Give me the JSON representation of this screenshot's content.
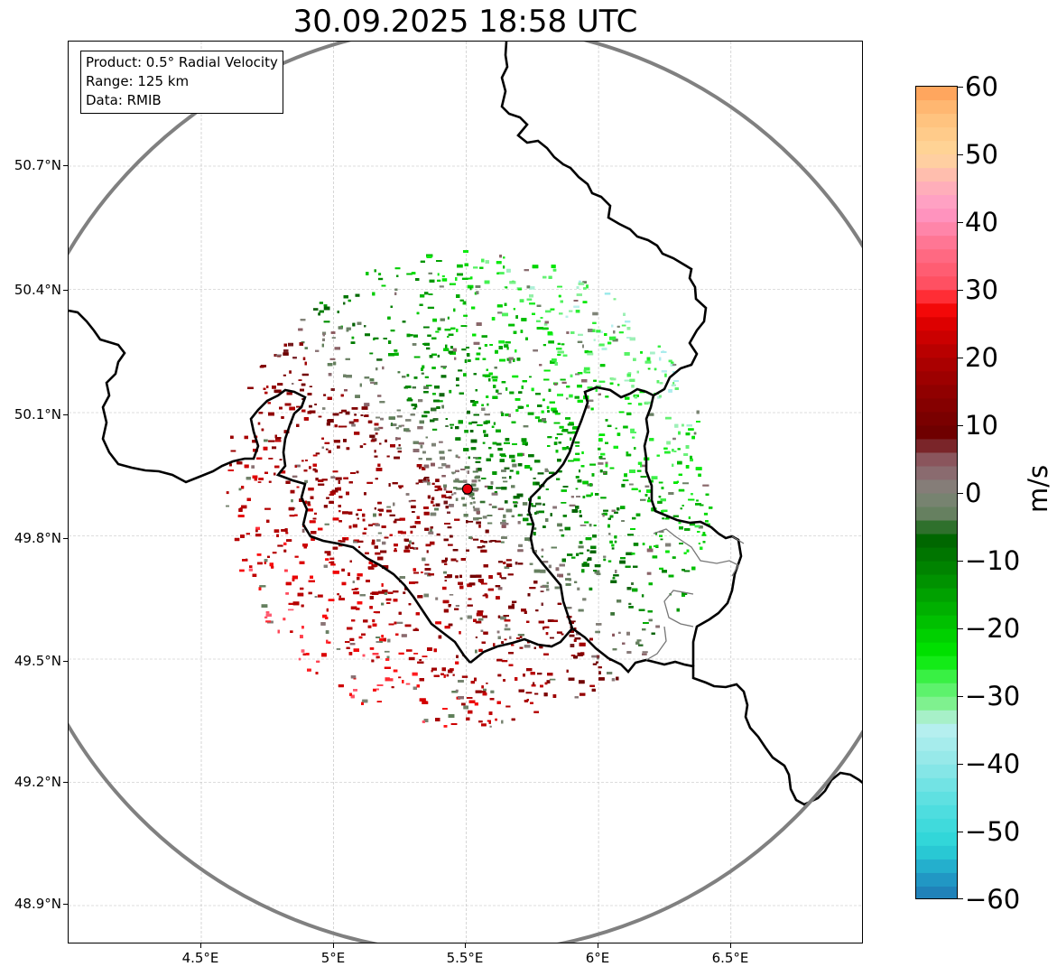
{
  "title": "30.09.2025 18:58 UTC",
  "info": {
    "product": "Product: 0.5° Radial Velocity",
    "range": "Range: 125 km",
    "data": "Data: RMIB"
  },
  "axes": {
    "lat_labels": [
      "50.7°N",
      "50.4°N",
      "50.1°N",
      "49.8°N",
      "49.5°N",
      "49.2°N",
      "48.9°N"
    ],
    "lon_labels": [
      "4.5°E",
      "5°E",
      "5.5°E",
      "6°E",
      "6.5°E"
    ]
  },
  "radar": {
    "site_lon": 5.505,
    "site_lat": 49.914,
    "site_marker_color": "#e8000b",
    "range_ring_color": "#808080"
  },
  "colorbar": {
    "min": -60,
    "max": 60,
    "tick_labels": [
      "60",
      "50",
      "40",
      "30",
      "20",
      "10",
      "0",
      "−10",
      "−20",
      "−30",
      "−40",
      "−50",
      "−60"
    ],
    "unit": "m/s",
    "stops": [
      {
        "v": -60,
        "c": "#1f77b4"
      },
      {
        "v": -56,
        "c": "#21a2c9"
      },
      {
        "v": -52,
        "c": "#2bd4d8"
      },
      {
        "v": -46,
        "c": "#55dfe0"
      },
      {
        "v": -40,
        "c": "#8fe7e8"
      },
      {
        "v": -34,
        "c": "#bdf0f0"
      },
      {
        "v": -32,
        "c": "#90f0a0"
      },
      {
        "v": -28,
        "c": "#4cf25a"
      },
      {
        "v": -24,
        "c": "#00e800"
      },
      {
        "v": -18,
        "c": "#00b800"
      },
      {
        "v": -12,
        "c": "#008a00"
      },
      {
        "v": -6,
        "c": "#006000"
      },
      {
        "v": -4,
        "c": "#5e7f58"
      },
      {
        "v": 0,
        "c": "#7f8478"
      },
      {
        "v": 2,
        "c": "#8a7678"
      },
      {
        "v": 6,
        "c": "#8a4a52"
      },
      {
        "v": 8,
        "c": "#6a0000"
      },
      {
        "v": 14,
        "c": "#8a0000"
      },
      {
        "v": 20,
        "c": "#b00000"
      },
      {
        "v": 26,
        "c": "#e60000"
      },
      {
        "v": 28,
        "c": "#ff1010"
      },
      {
        "v": 30,
        "c": "#ff4a5a"
      },
      {
        "v": 36,
        "c": "#ff6f8a"
      },
      {
        "v": 42,
        "c": "#ff9ac8"
      },
      {
        "v": 46,
        "c": "#ffb5b5"
      },
      {
        "v": 50,
        "c": "#ffd79a"
      },
      {
        "v": 56,
        "c": "#ffbf7a"
      },
      {
        "v": 60,
        "c": "#ff9d55"
      }
    ]
  }
}
